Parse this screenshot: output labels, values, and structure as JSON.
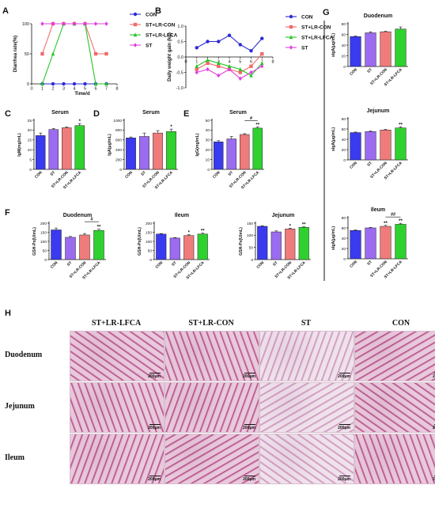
{
  "colors": {
    "CON": "#3a3af0",
    "ST": "#9b6bf0",
    "ST+LR-CON": "#f07b7b",
    "ST+LR-LFCA": "#2fd12f",
    "line_CON": "#2b2bd6",
    "line_ST": "#e040e0",
    "line_LRCON": "#f06a6a",
    "line_LRLFCA": "#25c525"
  },
  "panels": {
    "A": "A",
    "B": "B",
    "C": "C",
    "D": "D",
    "E": "E",
    "F": "F",
    "G": "G",
    "H": "H"
  },
  "chart_data": [
    {
      "panel": "A",
      "type": "line",
      "xlabel": "Time/d",
      "ylabel": "Diarrhea rate(%)",
      "xlim": [
        0,
        8
      ],
      "ylim": [
        0,
        100
      ],
      "xticks": [
        "0",
        "1",
        "2",
        "3",
        "4",
        "5",
        "6",
        "7",
        "8"
      ],
      "yticks": [
        "0",
        "50",
        "100"
      ],
      "legend": "right",
      "series": [
        {
          "name": "CON",
          "color": "#2b2bd6",
          "marker": "circle",
          "x": [
            1,
            2,
            3,
            4,
            5,
            6,
            7
          ],
          "y": [
            0,
            0,
            0,
            0,
            0,
            0,
            0
          ]
        },
        {
          "name": "ST+LR-CON",
          "color": "#f06a6a",
          "marker": "square",
          "x": [
            1,
            2,
            3,
            4,
            5,
            6,
            7
          ],
          "y": [
            50,
            100,
            100,
            100,
            100,
            50,
            50
          ]
        },
        {
          "name": "ST+LR-LFCA",
          "color": "#25c525",
          "marker": "triangle",
          "x": [
            1,
            2,
            3,
            4,
            5,
            6,
            7
          ],
          "y": [
            0,
            50,
            100,
            100,
            100,
            0,
            0
          ]
        },
        {
          "name": "ST",
          "color": "#e040e0",
          "marker": "diamond",
          "x": [
            1,
            2,
            3,
            4,
            5,
            6,
            7
          ],
          "y": [
            100,
            100,
            100,
            100,
            100,
            100,
            100
          ]
        }
      ]
    },
    {
      "panel": "B",
      "type": "line",
      "xlabel": "",
      "ylabel": "Daily weight gain (kg)",
      "xlim": [
        0,
        8
      ],
      "ylim": [
        -1.0,
        1.0
      ],
      "xticks": [
        "0",
        "1",
        "2",
        "3",
        "4",
        "5",
        "6",
        "7",
        "8"
      ],
      "yticks": [
        "-1.0",
        "-0.5",
        "0.0",
        "0.5",
        "1.0"
      ],
      "legend": "right",
      "series": [
        {
          "name": "CON",
          "color": "#2b2bd6",
          "marker": "circle",
          "x": [
            1,
            2,
            3,
            4,
            5,
            6,
            7
          ],
          "y": [
            0.3,
            0.5,
            0.5,
            0.7,
            0.4,
            0.2,
            0.6
          ]
        },
        {
          "name": "ST+LR-CON",
          "color": "#f06a6a",
          "marker": "square",
          "x": [
            1,
            2,
            3,
            4,
            5,
            6,
            7
          ],
          "y": [
            -0.4,
            -0.2,
            -0.3,
            -0.4,
            -0.5,
            -0.3,
            0.1
          ]
        },
        {
          "name": "ST+LR-LFCA",
          "color": "#25c525",
          "marker": "triangle",
          "x": [
            1,
            2,
            3,
            4,
            5,
            6,
            7
          ],
          "y": [
            -0.3,
            -0.1,
            -0.2,
            -0.3,
            -0.4,
            -0.6,
            -0.2
          ]
        },
        {
          "name": "ST",
          "color": "#e040e0",
          "marker": "diamond",
          "x": [
            1,
            2,
            3,
            4,
            5,
            6,
            7
          ],
          "y": [
            -0.5,
            -0.4,
            -0.6,
            -0.4,
            -0.7,
            -0.5,
            -0.3
          ]
        }
      ]
    },
    {
      "panel": "C",
      "type": "bar",
      "title": "Serum",
      "ylabel": "IgM(mg/mL)",
      "ylim": [
        0,
        25
      ],
      "yticks": [
        "0",
        "5",
        "10",
        "15",
        "20",
        "25"
      ],
      "categories": [
        "CON",
        "ST",
        "ST+LR-CON",
        "ST+LR-LFCA"
      ],
      "values": [
        17.2,
        20.3,
        21.2,
        22.3
      ],
      "errors": [
        1.3,
        0.5,
        0.4,
        1.0
      ],
      "marks": [
        "",
        "",
        "",
        "*"
      ],
      "bracket": null
    },
    {
      "panel": "D",
      "type": "bar",
      "title": "Serum",
      "ylabel": "IgA(μg/mL)",
      "ylim": [
        0,
        1000
      ],
      "yticks": [
        "0",
        "200",
        "400",
        "600",
        "800",
        "1000"
      ],
      "categories": [
        "CON",
        "ST",
        "ST+LR-CON",
        "ST+LR-LFCA"
      ],
      "values": [
        640,
        670,
        740,
        770
      ],
      "errors": [
        20,
        70,
        50,
        50
      ],
      "marks": [
        "",
        "",
        "",
        "*"
      ],
      "bracket": null
    },
    {
      "panel": "E",
      "type": "bar",
      "title": "Serum",
      "ylabel": "IgG(mg/mL)",
      "ylim": [
        0,
        50
      ],
      "yticks": [
        "0",
        "10",
        "20",
        "30",
        "40",
        "50"
      ],
      "categories": [
        "CON",
        "ST",
        "ST+LR-CON",
        "ST+LR-LFCA"
      ],
      "values": [
        28,
        31,
        35.5,
        42
      ],
      "errors": [
        1.2,
        2.5,
        0.8,
        1.2
      ],
      "marks": [
        "",
        "",
        "",
        "**"
      ],
      "bracket": {
        "from": 2,
        "to": 3,
        "label": "#"
      }
    },
    {
      "panel": "F",
      "type": "bar",
      "title": "Duodenum",
      "ylabel": "GSH-Px(U/mL)",
      "ylim": [
        0,
        200
      ],
      "yticks": [
        "0",
        "50",
        "100",
        "150",
        "200"
      ],
      "categories": [
        "CON",
        "ST",
        "ST+LR-CON",
        "ST+LR-LFCA"
      ],
      "values": [
        163,
        122,
        135,
        160
      ],
      "errors": [
        10,
        5,
        8,
        7
      ],
      "marks": [
        "",
        "",
        "",
        "**"
      ],
      "bracket": {
        "from": 2,
        "to": 3,
        "label": "#"
      }
    },
    {
      "panel": "F",
      "type": "bar",
      "title": "Ileum",
      "ylabel": "GSH-Px(U/mL)",
      "ylim": [
        0,
        200
      ],
      "yticks": [
        "0",
        "50",
        "100",
        "150",
        "200"
      ],
      "categories": [
        "CON",
        "ST",
        "ST+LR-CON",
        "ST+LR-LFCA"
      ],
      "values": [
        140,
        118,
        132,
        140
      ],
      "errors": [
        3,
        3,
        4,
        5
      ],
      "marks": [
        "",
        "",
        "*",
        "**"
      ],
      "bracket": null
    },
    {
      "panel": "F",
      "type": "bar",
      "title": "Jejunum",
      "ylabel": "GSH-Px(U/mL)",
      "ylim": [
        0,
        150
      ],
      "yticks": [
        "0",
        "50",
        "100",
        "150"
      ],
      "categories": [
        "CON",
        "ST",
        "ST+LR-CON",
        "ST+LR-LFCA"
      ],
      "values": [
        137,
        114,
        126,
        133
      ],
      "errors": [
        2,
        4,
        3,
        2
      ],
      "marks": [
        "",
        "",
        "*",
        "**"
      ],
      "bracket": null
    },
    {
      "panel": "G",
      "type": "bar",
      "title": "Duodenum",
      "ylabel": "sIgA(μg/mL)",
      "ylim": [
        0,
        80
      ],
      "yticks": [
        "0",
        "20",
        "40",
        "60",
        "80"
      ],
      "categories": [
        "CON",
        "ST",
        "ST+LR-CON",
        "ST+LR-LFCA"
      ],
      "values": [
        56,
        63,
        65,
        70
      ],
      "errors": [
        1,
        2,
        1,
        4
      ],
      "marks": [
        "",
        "",
        "",
        ""
      ],
      "bracket": null
    },
    {
      "panel": "G",
      "type": "bar",
      "title": "Jejunum",
      "ylabel": "sIgA(μg/mL)",
      "ylim": [
        0,
        80
      ],
      "yticks": [
        "0",
        "20",
        "40",
        "60",
        "80"
      ],
      "categories": [
        "CON",
        "ST",
        "ST+LR-CON",
        "ST+LR-LFCA"
      ],
      "values": [
        53,
        55,
        58,
        62
      ],
      "errors": [
        1,
        1,
        1,
        2
      ],
      "marks": [
        "",
        "",
        "",
        "**"
      ],
      "bracket": null
    },
    {
      "panel": "G",
      "type": "bar",
      "title": "Ileum",
      "ylabel": "sIgA(μg/mL)",
      "ylim": [
        0,
        80
      ],
      "yticks": [
        "0",
        "20",
        "40",
        "60",
        "80"
      ],
      "categories": [
        "CON",
        "ST",
        "ST+LR-CON",
        "ST+LR-LFCA"
      ],
      "values": [
        55,
        60,
        63,
        67
      ],
      "errors": [
        1,
        1,
        2,
        2
      ],
      "marks": [
        "",
        "",
        "**",
        "**"
      ],
      "bracket": {
        "from": 2,
        "to": 3,
        "label": "##"
      }
    }
  ],
  "histology": {
    "columns": [
      "ST+LR-LFCA",
      "ST+LR-CON",
      "ST",
      "CON"
    ],
    "rows": [
      "Duodenum",
      "Jejunum",
      "Ileum"
    ],
    "scale_label": "200μm"
  }
}
